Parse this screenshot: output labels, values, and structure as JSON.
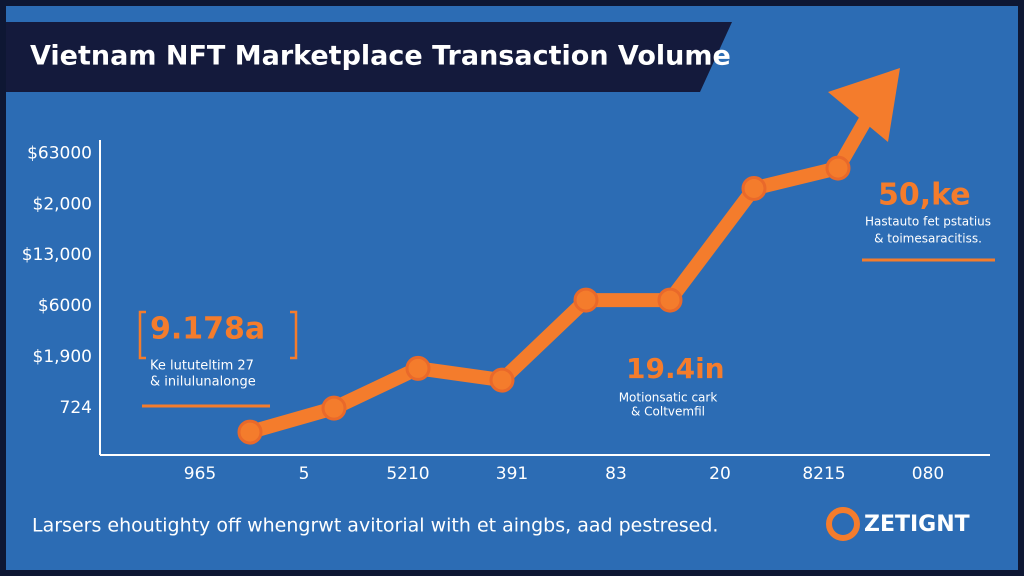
{
  "chart_data": {
    "type": "line",
    "title": "Vietnam NFT Marketplace Transaction Volume",
    "categories": [
      "965",
      "5",
      "5210",
      "391",
      "83",
      "20",
      "8215",
      "080"
    ],
    "series": [
      {
        "name": "Transaction Volume",
        "color": "#f47c2c",
        "values": [
          -0.47,
          0,
          0.78,
          0.55,
          2.12,
          2.12,
          4.31,
          4.71
        ]
      }
    ],
    "ylim": [
      -0.92,
      5.3
    ],
    "yticks": [
      {
        "value": 0,
        "label": "724"
      },
      {
        "value": 1,
        "label": "$1,900"
      },
      {
        "value": 2,
        "label": "$6000"
      },
      {
        "value": 3,
        "label": "$13,000"
      },
      {
        "value": 4,
        "label": "$2,000"
      },
      {
        "value": 5,
        "label": "$63000"
      }
    ],
    "annotations": [
      {
        "value": "9.178a",
        "text": [
          "Ke lututeltim 27",
          "& inilulunalonge"
        ]
      },
      {
        "value": "19.4in",
        "text": [
          "Motionsatic cark",
          "& Coltvemfil"
        ]
      },
      {
        "value": "50,ke",
        "text": [
          "Hastauto fet pstatius",
          "& toimesaracitiss."
        ]
      }
    ],
    "footer": "Larsers ehoutighty off whengrwt avitorial with et aingbs, aad pestresed.",
    "logo": "ZETIGNT"
  }
}
